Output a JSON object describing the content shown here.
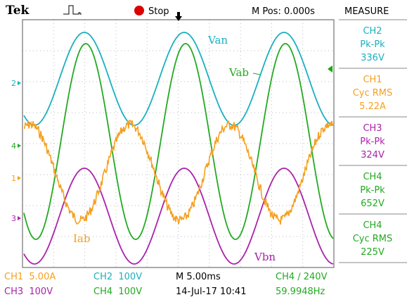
{
  "header": {
    "brand": "Tek",
    "status": "Stop",
    "position": "M Pos: 0.000s",
    "panel_title": "MEASURE"
  },
  "channel_markers": [
    "2",
    "4",
    "1",
    "3"
  ],
  "trace_labels": [
    "Van",
    "Vab",
    "Iab",
    "Vbn"
  ],
  "measurements": [
    {
      "channel": "CH2",
      "type": "Pk-Pk",
      "value": "336V"
    },
    {
      "channel": "CH1",
      "type": "Cyc RMS",
      "value": "5.22A"
    },
    {
      "channel": "CH3",
      "type": "Pk-Pk",
      "value": "324V"
    },
    {
      "channel": "CH4",
      "type": "Pk-Pk",
      "value": "652V"
    },
    {
      "channel": "CH4",
      "type": "Cyc RMS",
      "value": "225V"
    }
  ],
  "footer": {
    "row1": [
      "CH1  5.00A",
      "CH2  100V",
      "M 5.00ms",
      "CH4 ∕ 240V"
    ],
    "row2": [
      "CH3  100V",
      "CH4  100V",
      "14-Jul-17 10:41",
      "59.9948Hz"
    ]
  }
}
